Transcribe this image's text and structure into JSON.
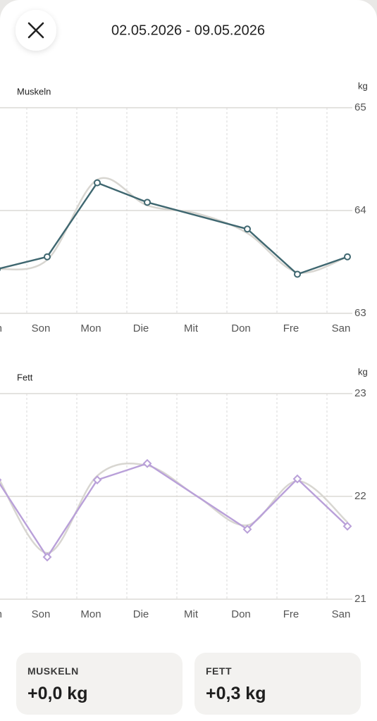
{
  "header": {
    "title": "02.05.2026 - 09.05.2026"
  },
  "chart_data": [
    {
      "type": "line",
      "title": "Muskeln",
      "unit": "kg",
      "categories": [
        "n",
        "Son",
        "Mon",
        "Die",
        "Mit",
        "Don",
        "Fre",
        "San"
      ],
      "series": [
        {
          "color": "#d8d6d1",
          "smooth": true,
          "values": [
            63.43,
            63.52,
            64.3,
            64.05,
            63.97,
            63.78,
            63.4,
            63.55
          ]
        },
        {
          "color": "#3f6770",
          "marker": "circle",
          "values": [
            63.43,
            63.55,
            64.27,
            64.08,
            null,
            63.82,
            63.38,
            63.55
          ]
        }
      ],
      "ylim": [
        63,
        65
      ],
      "yticks": [
        63,
        64,
        65
      ],
      "grid": true
    },
    {
      "type": "line",
      "title": "Fett",
      "unit": "kg",
      "categories": [
        "n",
        "Son",
        "Mon",
        "Die",
        "Mit",
        "Don",
        "Fre",
        "San"
      ],
      "series": [
        {
          "color": "#d8d6d1",
          "smooth": true,
          "values": [
            22.2,
            21.45,
            22.2,
            22.3,
            22.0,
            21.72,
            22.15,
            21.75
          ]
        },
        {
          "color": "#b9a0d9",
          "marker": "diamond",
          "values": [
            22.16,
            21.41,
            22.16,
            22.32,
            null,
            21.68,
            22.17,
            21.71
          ]
        }
      ],
      "ylim": [
        21,
        23
      ],
      "yticks": [
        21,
        22,
        23
      ],
      "grid": true
    }
  ],
  "summary": [
    {
      "label": "MUSKELN",
      "value": "+0,0 kg"
    },
    {
      "label": "FETT",
      "value": "+0,3 kg"
    }
  ]
}
